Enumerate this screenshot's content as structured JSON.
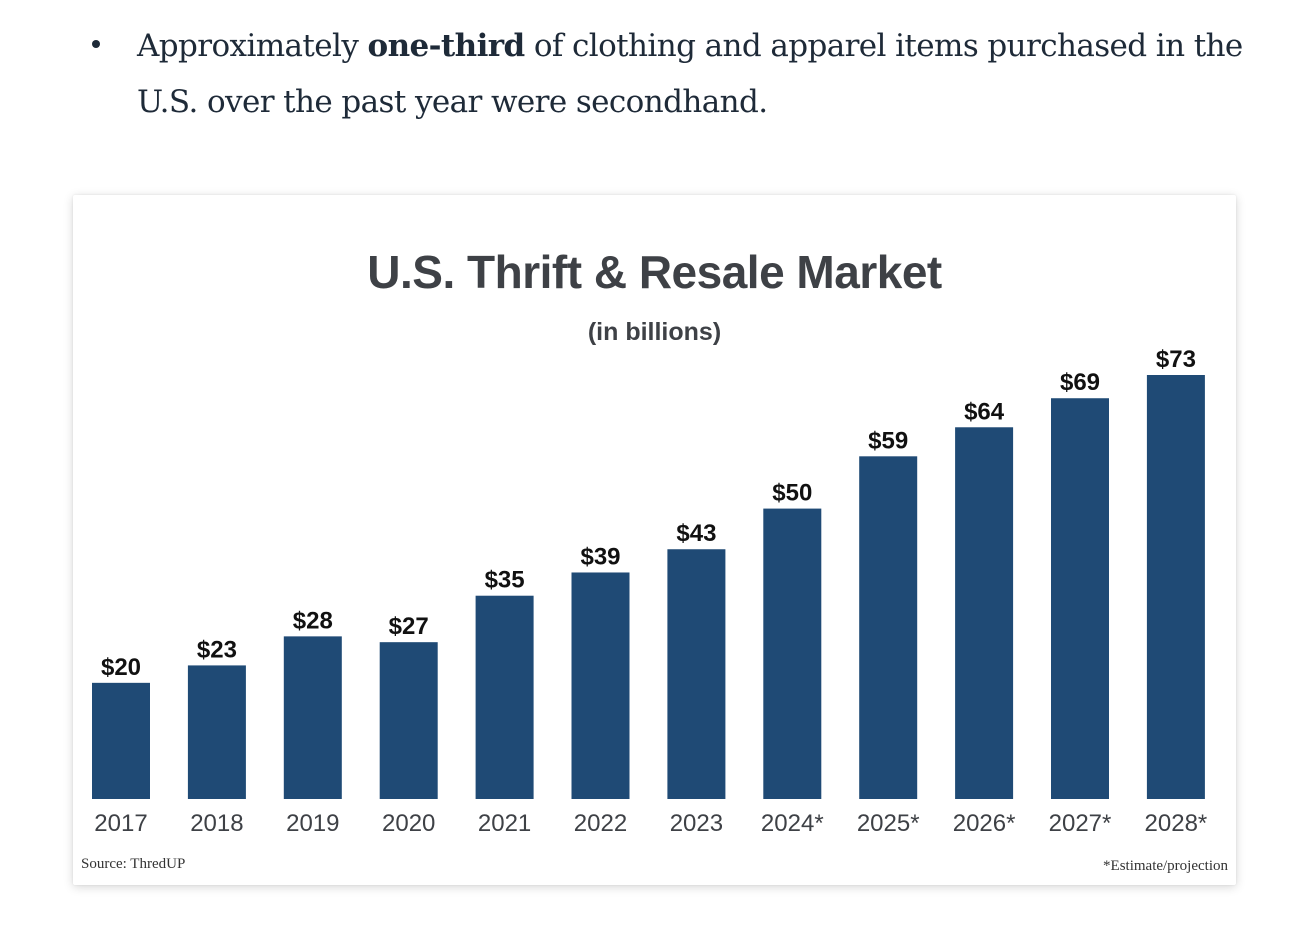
{
  "bullet": {
    "prefix": "Approximately ",
    "emphasis": "one-third",
    "suffix": " of clothing and apparel items purchased in the U.S. over the past year were secondhand."
  },
  "card": {
    "source": "Source: ThredUP",
    "footnote": "*Estimate/projection"
  },
  "colors": {
    "bar": "#1f4a75",
    "title": "#3e4146",
    "label": "#111111"
  },
  "chart_data": {
    "type": "bar",
    "title": "U.S. Thrift & Resale Market",
    "subtitle": "(in billions)",
    "categories": [
      "2017",
      "2018",
      "2019",
      "2020",
      "2021",
      "2022",
      "2023",
      "2024*",
      "2025*",
      "2026*",
      "2027*",
      "2028*"
    ],
    "values": [
      20,
      23,
      28,
      27,
      35,
      39,
      43,
      50,
      59,
      64,
      69,
      73
    ],
    "data_labels": [
      "$20",
      "$23",
      "$28",
      "$27",
      "$35",
      "$39",
      "$43",
      "$50",
      "$59",
      "$64",
      "$69",
      "$73"
    ],
    "ylim": [
      0,
      73
    ],
    "grid": false,
    "legend": "none"
  }
}
